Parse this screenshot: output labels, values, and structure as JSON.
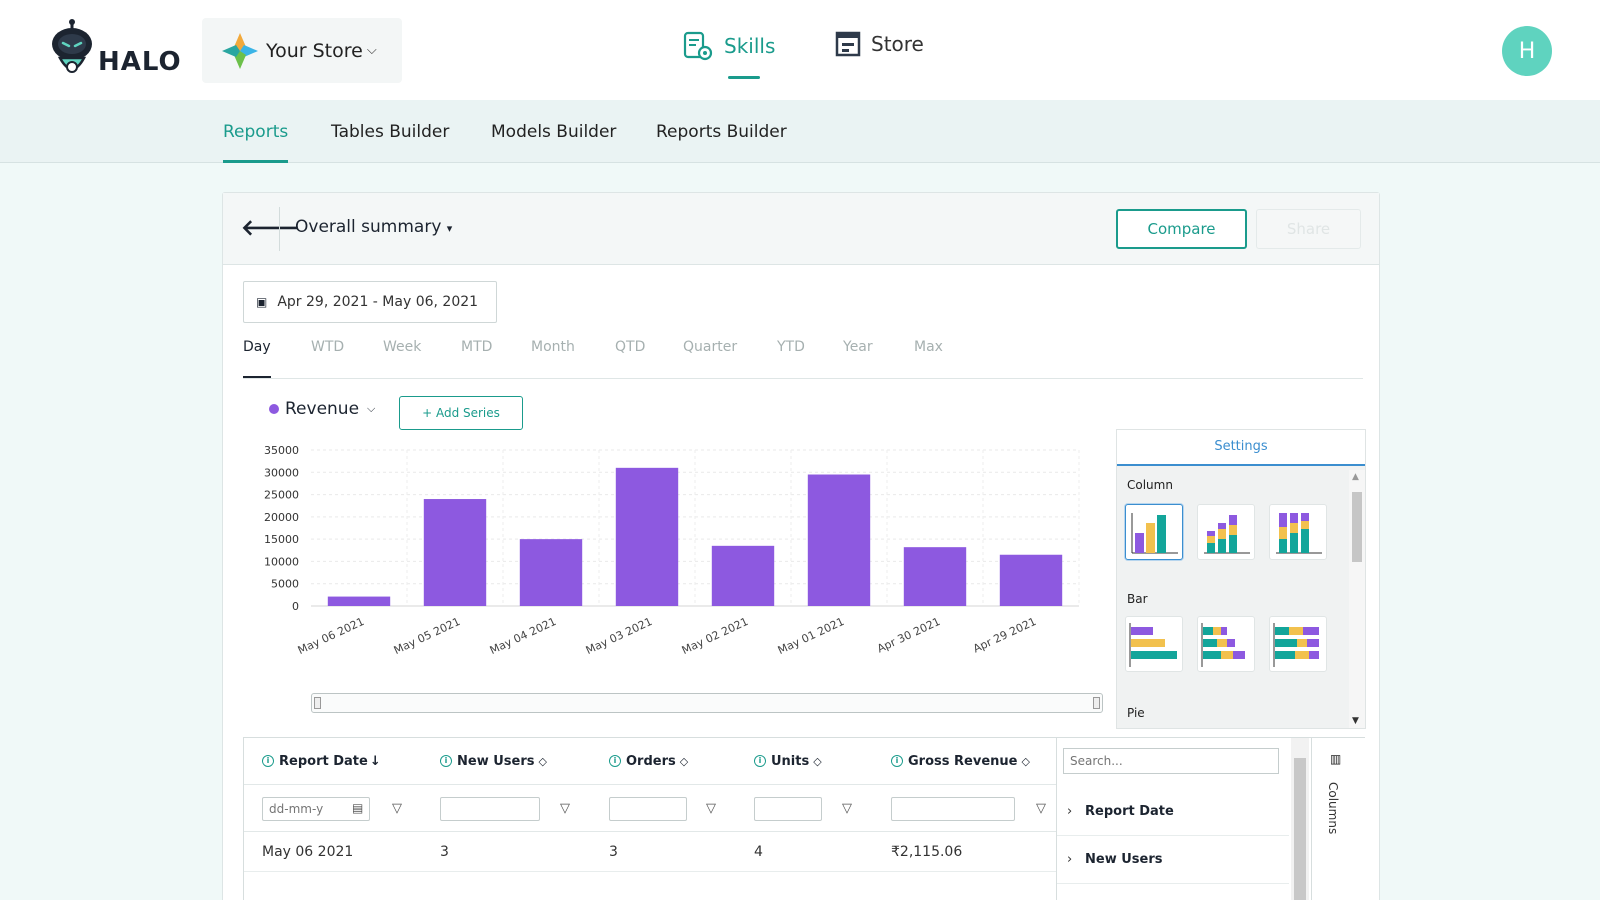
{
  "header": {
    "brand": "HALO",
    "store_name": "Your Store",
    "nav": [
      {
        "label": "Skills",
        "active": true
      },
      {
        "label": "Store",
        "active": false
      }
    ],
    "avatar_initial": "H"
  },
  "subnav": {
    "tabs": [
      {
        "label": "Reports",
        "active": true
      },
      {
        "label": "Tables Builder",
        "active": false
      },
      {
        "label": "Models Builder",
        "active": false
      },
      {
        "label": "Reports Builder",
        "active": false
      }
    ]
  },
  "report": {
    "title": "Overall summary",
    "compare_label": "Compare",
    "share_label": "Share",
    "date_range": "Apr 29, 2021 - May 06, 2021",
    "periods": [
      "Day",
      "WTD",
      "Week",
      "MTD",
      "Month",
      "QTD",
      "Quarter",
      "YTD",
      "Year",
      "Max"
    ],
    "active_period": "Day",
    "series_label": "Revenue",
    "add_series_label": "+ Add Series"
  },
  "settings": {
    "title": "Settings",
    "sections": [
      "Column",
      "Bar",
      "Pie"
    ]
  },
  "colors": {
    "accent": "#1a9b8c",
    "bar": "#8d59e0",
    "settings_blue": "#3b8ecf",
    "thumb_purple": "#8d59e0",
    "thumb_yellow": "#f2c14e",
    "thumb_teal": "#13a59a"
  },
  "chart_data": {
    "type": "bar",
    "categories": [
      "May 06 2021",
      "May 05 2021",
      "May 04 2021",
      "May 03 2021",
      "May 02 2021",
      "May 01 2021",
      "Apr 30 2021",
      "Apr 29 2021"
    ],
    "series": [
      {
        "name": "Revenue",
        "values": [
          2115,
          24000,
          15000,
          31000,
          13500,
          29500,
          13200,
          11500
        ]
      }
    ],
    "ylim": [
      0,
      35000
    ],
    "yticks": [
      0,
      5000,
      10000,
      15000,
      20000,
      25000,
      30000,
      35000
    ],
    "grid": true
  },
  "table": {
    "columns": [
      {
        "label": "Report Date",
        "sort": "↓"
      },
      {
        "label": "New Users",
        "sort": "◇"
      },
      {
        "label": "Orders",
        "sort": "◇"
      },
      {
        "label": "Units",
        "sort": "◇"
      },
      {
        "label": "Gross Revenue",
        "sort": "◇"
      }
    ],
    "date_placeholder": "dd-mm-y",
    "rows": [
      {
        "date": "May 06 2021",
        "new_users": "3",
        "orders": "3",
        "units": "4",
        "gross_revenue": "₹2,115.06"
      }
    ],
    "tool_panel": {
      "search_placeholder": "Search...",
      "items": [
        "Report Date",
        "New Users"
      ],
      "side_label": "Columns"
    }
  }
}
